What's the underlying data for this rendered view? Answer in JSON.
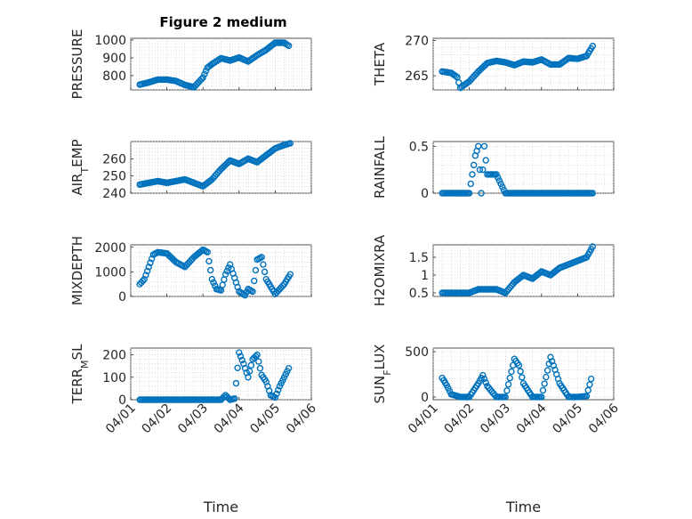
{
  "figure_title": "Figure 2 medium",
  "xlabel": "Time",
  "colors": {
    "marker": "#0072BD",
    "axis": "#262626",
    "grid": "#c8c8c8"
  },
  "chart_data": [
    {
      "type": "scatter",
      "ylabel": "PRESSURE",
      "ylim": [
        720,
        1010
      ],
      "yticks": [
        800,
        900,
        1000
      ],
      "xlim": [
        "04/01",
        "04/06"
      ],
      "grid": true,
      "x": [
        "04/01 06:00",
        "04/01 12:00",
        "04/01 18:00",
        "04/02 00:00",
        "04/02 06:00",
        "04/02 12:00",
        "04/02 18:00",
        "04/03 00:00",
        "04/03 03:00",
        "04/03 06:00",
        "04/03 12:00",
        "04/03 18:00",
        "04/04 00:00",
        "04/04 06:00",
        "04/04 12:00",
        "04/04 18:00",
        "04/05 00:00",
        "04/05 06:00",
        "04/05 09:00"
      ],
      "y": [
        750,
        762,
        778,
        778,
        770,
        748,
        735,
        790,
        845,
        865,
        898,
        885,
        902,
        880,
        915,
        945,
        985,
        985,
        968
      ]
    },
    {
      "type": "scatter",
      "ylabel": "THETA",
      "ylim": [
        263,
        270.3
      ],
      "yticks": [
        265,
        270
      ],
      "xlim": [
        "04/01",
        "04/06"
      ],
      "grid": true,
      "x": [
        "04/01 06:00",
        "04/01 12:00",
        "04/01 16:00",
        "04/01 18:00",
        "04/02 00:00",
        "04/02 06:00",
        "04/02 12:00",
        "04/02 18:00",
        "04/03 00:00",
        "04/03 06:00",
        "04/03 12:00",
        "04/03 18:00",
        "04/04 00:00",
        "04/04 06:00",
        "04/04 12:00",
        "04/04 18:00",
        "04/05 00:00",
        "04/05 06:00",
        "04/05 10:00"
      ],
      "y": [
        265.6,
        265.4,
        264.8,
        263.3,
        264.2,
        265.6,
        266.8,
        267.1,
        266.9,
        266.5,
        267.0,
        266.9,
        267.3,
        266.6,
        266.6,
        267.5,
        267.4,
        267.8,
        269.2
      ]
    },
    {
      "type": "scatter",
      "ylabel": "AIR_TEMP",
      "ylim": [
        240,
        270
      ],
      "yticks": [
        240,
        250,
        260
      ],
      "xlim": [
        "04/01",
        "04/06"
      ],
      "grid": true,
      "x": [
        "04/01 06:00",
        "04/01 12:00",
        "04/01 18:00",
        "04/02 00:00",
        "04/02 06:00",
        "04/02 12:00",
        "04/02 18:00",
        "04/03 00:00",
        "04/03 06:00",
        "04/03 12:00",
        "04/03 18:00",
        "04/04 00:00",
        "04/04 06:00",
        "04/04 12:00",
        "04/04 18:00",
        "04/05 00:00",
        "04/05 06:00",
        "04/05 10:00"
      ],
      "y": [
        245,
        246,
        247,
        246,
        247,
        248,
        246,
        244,
        248,
        254,
        259,
        257,
        260,
        258,
        262,
        266,
        268,
        269
      ]
    },
    {
      "type": "scatter",
      "ylabel": "RAINFALL",
      "ylim": [
        0,
        0.55
      ],
      "yticks": [
        0,
        0.5
      ],
      "xlim": [
        "04/01",
        "04/06"
      ],
      "grid": true,
      "x": [
        "04/01 06:00",
        "04/01 12:00",
        "04/01 18:00",
        "04/02 00:00",
        "04/02 04:00",
        "04/02 06:00",
        "04/02 08:00",
        "04/02 10:00",
        "04/02 12:00",
        "04/02 14:00",
        "04/02 18:00",
        "04/03 00:00",
        "04/03 12:00",
        "04/04 00:00",
        "04/04 12:00",
        "04/05 00:00",
        "04/05 10:00"
      ],
      "y": [
        0,
        0,
        0,
        0,
        0.4,
        0.5,
        0,
        0.5,
        0.2,
        0.2,
        0.2,
        0,
        0,
        0,
        0,
        0,
        0
      ]
    },
    {
      "type": "scatter",
      "ylabel": "MIXDEPTH",
      "ylim": [
        0,
        2100
      ],
      "yticks": [
        0,
        1000,
        2000
      ],
      "xlim": [
        "04/01",
        "04/06"
      ],
      "grid": true,
      "x": [
        "04/01 06:00",
        "04/01 09:00",
        "04/01 12:00",
        "04/01 15:00",
        "04/01 18:00",
        "04/02 00:00",
        "04/02 06:00",
        "04/02 12:00",
        "04/02 18:00",
        "04/03 00:00",
        "04/03 03:00",
        "04/03 06:00",
        "04/03 09:00",
        "04/03 12:00",
        "04/03 15:00",
        "04/03 18:00",
        "04/04 00:00",
        "04/04 04:00",
        "04/04 06:00",
        "04/04 09:00",
        "04/04 12:00",
        "04/04 15:00",
        "04/04 18:00",
        "04/05 00:00",
        "04/05 06:00",
        "04/05 10:00"
      ],
      "y": [
        500,
        700,
        1200,
        1700,
        1800,
        1750,
        1400,
        1200,
        1600,
        1900,
        1800,
        700,
        300,
        250,
        900,
        1300,
        200,
        50,
        300,
        200,
        1500,
        1600,
        700,
        100,
        500,
        900
      ]
    },
    {
      "type": "scatter",
      "ylabel": "H2OMIXRA",
      "ylim": [
        0.4,
        1.85
      ],
      "yticks": [
        0.5,
        1,
        1.5
      ],
      "xlim": [
        "04/01",
        "04/06"
      ],
      "grid": true,
      "x": [
        "04/01 06:00",
        "04/01 12:00",
        "04/01 18:00",
        "04/02 00:00",
        "04/02 06:00",
        "04/02 12:00",
        "04/02 18:00",
        "04/03 00:00",
        "04/03 06:00",
        "04/03 12:00",
        "04/03 18:00",
        "04/04 00:00",
        "04/04 06:00",
        "04/04 12:00",
        "04/04 18:00",
        "04/05 00:00",
        "04/05 06:00",
        "04/05 10:00"
      ],
      "y": [
        0.5,
        0.5,
        0.5,
        0.5,
        0.6,
        0.6,
        0.6,
        0.5,
        0.8,
        1.0,
        0.9,
        1.1,
        1.0,
        1.2,
        1.3,
        1.4,
        1.5,
        1.8
      ]
    },
    {
      "type": "scatter",
      "ylabel": "TERR_MSL",
      "ylim": [
        0,
        230
      ],
      "yticks": [
        0,
        100,
        200
      ],
      "xlim": [
        "04/01",
        "04/06"
      ],
      "grid": true,
      "x": [
        "04/01 06:00",
        "04/01 12:00",
        "04/01 18:00",
        "04/02 00:00",
        "04/02 12:00",
        "04/03 00:00",
        "04/03 12:00",
        "04/03 15:00",
        "04/03 18:00",
        "04/03 21:00",
        "04/04 00:00",
        "04/04 03:00",
        "04/04 06:00",
        "04/04 09:00",
        "04/04 12:00",
        "04/04 15:00",
        "04/04 18:00",
        "04/04 21:00",
        "04/05 00:00",
        "04/05 03:00",
        "04/05 06:00",
        "04/05 09:00"
      ],
      "y": [
        0,
        0,
        0,
        0,
        0,
        0,
        0,
        20,
        0,
        5,
        210,
        160,
        100,
        180,
        200,
        110,
        80,
        20,
        10,
        60,
        100,
        140
      ]
    },
    {
      "type": "scatter",
      "ylabel": "SUN_FLUX",
      "ylim": [
        -30,
        540
      ],
      "yticks": [
        0,
        500
      ],
      "xlim": [
        "04/01",
        "04/06"
      ],
      "grid": true,
      "x": [
        "04/01 06:00",
        "04/01 09:00",
        "04/01 12:00",
        "04/01 18:00",
        "04/02 00:00",
        "04/02 06:00",
        "04/02 09:00",
        "04/02 12:00",
        "04/02 18:00",
        "04/03 00:00",
        "04/03 06:00",
        "04/03 09:00",
        "04/03 12:00",
        "04/03 18:00",
        "04/04 00:00",
        "04/04 06:00",
        "04/04 09:00",
        "04/04 12:00",
        "04/04 18:00",
        "04/05 00:00",
        "04/05 06:00",
        "04/05 09:00"
      ],
      "y": [
        210,
        130,
        30,
        0,
        0,
        150,
        240,
        120,
        0,
        0,
        420,
        350,
        150,
        0,
        0,
        440,
        300,
        150,
        0,
        0,
        10,
        200
      ]
    }
  ],
  "xticks": [
    "04/01",
    "04/02",
    "04/03",
    "04/04",
    "04/05",
    "04/06"
  ]
}
